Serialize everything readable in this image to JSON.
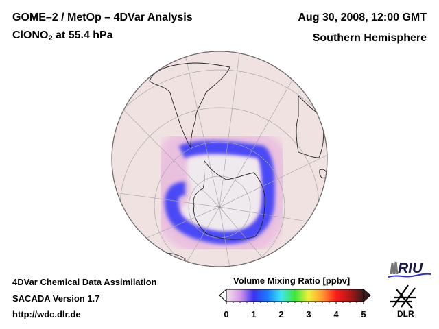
{
  "header": {
    "title_line1": "GOME–2 / MetOp – 4DVar Analysis",
    "species_prefix": "ClONO",
    "species_subscript": "2",
    "species_suffix": " at 55.4 hPa",
    "date": "Aug 30, 2008, 12:00 GMT",
    "region": "Southern Hemisphere"
  },
  "footer": {
    "line1": "4DVar Chemical Data Assimilation",
    "line2": "SACADA Version 1.7",
    "line3": "http://wdc.dlr.de"
  },
  "colorbar": {
    "title": "Volume Mixing Ratio [ppbv]",
    "ticks": [
      "0",
      "1",
      "2",
      "3",
      "4",
      "5"
    ],
    "range": [
      0,
      5
    ],
    "colors": [
      "#f3e6ea",
      "#d59ae6",
      "#3a32f0",
      "#1a7cff",
      "#3ee6f0",
      "#3ee63a",
      "#f0f03a",
      "#ff9a30",
      "#ff1a1a",
      "#b01818",
      "#3a1a1a"
    ]
  },
  "map": {
    "projection": "orthographic",
    "center": "South Pole",
    "background_color": "#f1e2e2",
    "low_color": "#efeaee",
    "ring_color": "#4a4af6"
  },
  "logos": {
    "riu": "RIU",
    "dlr": "DLR"
  }
}
